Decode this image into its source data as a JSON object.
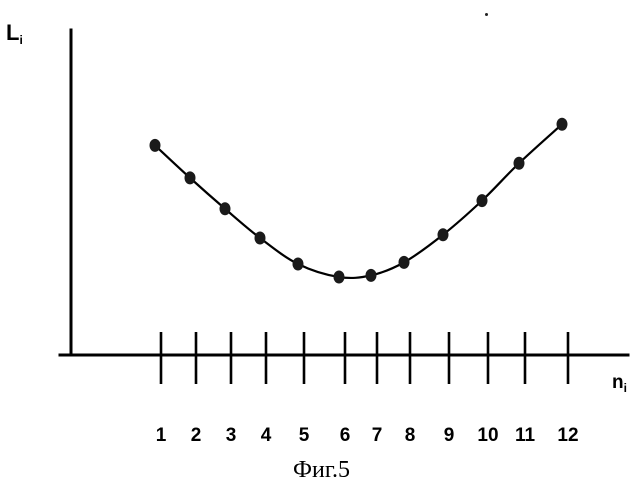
{
  "chart_data": {
    "type": "line",
    "x": [
      1,
      2,
      3,
      4,
      5,
      6,
      7,
      8,
      9,
      10,
      11,
      12
    ],
    "y": [
      64.5,
      54.5,
      45,
      36,
      28,
      24,
      24.5,
      28.5,
      37,
      47.5,
      59,
      71
    ],
    "tick_labels": [
      "1",
      "2",
      "3",
      "4",
      "5",
      "6",
      "7",
      "8",
      "9",
      "10",
      "11",
      "12"
    ],
    "xlabel": {
      "main": "n",
      "sub": "i"
    },
    "ylabel": {
      "main": "L",
      "sub": "i"
    },
    "xlim": [
      0,
      13
    ],
    "ylim": [
      0,
      100
    ],
    "grid": false,
    "smooth_curve": true,
    "point_color": "#1a1a1a",
    "line_color": "#000000"
  },
  "caption": "Фиг.5"
}
